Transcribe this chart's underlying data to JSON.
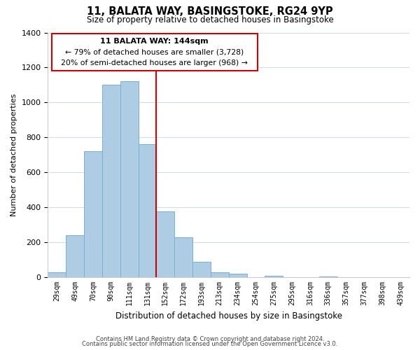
{
  "title": "11, BALATA WAY, BASINGSTOKE, RG24 9YP",
  "subtitle": "Size of property relative to detached houses in Basingstoke",
  "xlabel": "Distribution of detached houses by size in Basingstoke",
  "ylabel": "Number of detached properties",
  "bin_labels": [
    "29sqm",
    "49sqm",
    "70sqm",
    "90sqm",
    "111sqm",
    "131sqm",
    "152sqm",
    "172sqm",
    "193sqm",
    "213sqm",
    "234sqm",
    "254sqm",
    "275sqm",
    "295sqm",
    "316sqm",
    "336sqm",
    "357sqm",
    "377sqm",
    "398sqm",
    "439sqm"
  ],
  "bar_heights": [
    30,
    240,
    720,
    1100,
    1120,
    760,
    375,
    230,
    90,
    30,
    20,
    0,
    10,
    0,
    0,
    5,
    0,
    0,
    0,
    0
  ],
  "bar_color": "#aecde4",
  "bar_edge_color": "#7aaecf",
  "vline_x": 5.5,
  "vline_color": "#cc0000",
  "annotation_title": "11 BALATA WAY: 144sqm",
  "annotation_line1": "← 79% of detached houses are smaller (3,728)",
  "annotation_line2": "20% of semi-detached houses are larger (968) →",
  "annotation_box_color": "#ffffff",
  "annotation_box_edge": "#cc0000",
  "ylim": [
    0,
    1400
  ],
  "yticks": [
    0,
    200,
    400,
    600,
    800,
    1000,
    1200,
    1400
  ],
  "footer_line1": "Contains HM Land Registry data © Crown copyright and database right 2024.",
  "footer_line2": "Contains public sector information licensed under the Open Government Licence v3.0.",
  "background_color": "#ffffff",
  "grid_color": "#d0dde8"
}
